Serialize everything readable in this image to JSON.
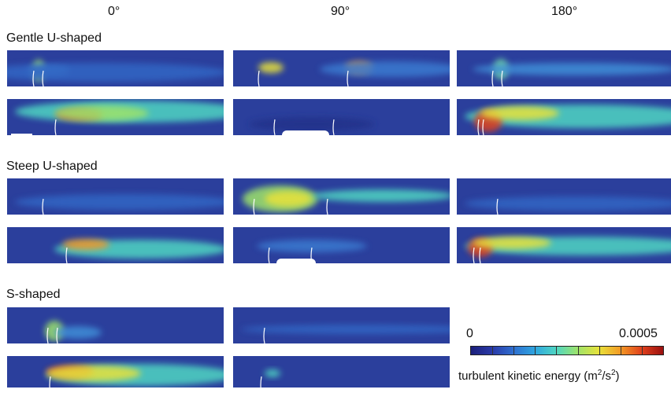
{
  "columns": [
    "0°",
    "90°",
    "180°"
  ],
  "rows": [
    {
      "label": "Gentle U-shaped"
    },
    {
      "label": "Steep U-shaped"
    },
    {
      "label": "S-shaped"
    }
  ],
  "colorbar": {
    "min": "0",
    "max": "0.0005",
    "label_text": "turbulent kinetic energy (m",
    "label_sup1": "2",
    "label_mid": "/s",
    "label_sup2": "2",
    "label_end": ")",
    "colors": [
      "#1b1f7a",
      "#2a3aa8",
      "#2f6fd0",
      "#2fa6e0",
      "#4fd6c2",
      "#9ee36a",
      "#e8e23a",
      "#f39a25",
      "#e0401c",
      "#9a1010"
    ],
    "tick_count": 9
  },
  "field": {
    "background": "#2b3f9c",
    "colormap": "jet"
  }
}
